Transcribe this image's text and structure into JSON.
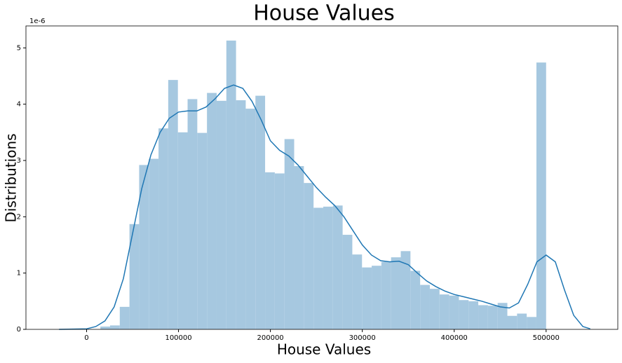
{
  "chart_data": {
    "type": "histogram",
    "title": "House Values",
    "x_label": "House Values",
    "y_label": "Distributions",
    "y_offset_label": "1e-6",
    "bins": [
      15000,
      25543,
      36087,
      46630,
      57174,
      67717,
      78261,
      88804,
      99348,
      109891,
      120435,
      130978,
      141522,
      152065,
      162609,
      173152,
      183696,
      194239,
      204783,
      215326,
      225870,
      236413,
      246957,
      257500,
      268043,
      278587,
      289130,
      299674,
      310217,
      320761,
      331304,
      341848,
      352391,
      362935,
      373478,
      384022,
      394565,
      405109,
      415652,
      426196,
      436739,
      447283,
      457826,
      468370,
      478913,
      489457,
      500000
    ],
    "values": [
      0.05,
      0.07,
      0.4,
      1.87,
      2.92,
      3.03,
      3.57,
      4.43,
      3.5,
      4.09,
      3.49,
      4.2,
      4.06,
      5.13,
      4.07,
      3.92,
      4.15,
      2.79,
      2.77,
      3.38,
      2.9,
      2.6,
      2.16,
      2.18,
      2.2,
      1.68,
      1.33,
      1.1,
      1.13,
      1.2,
      1.28,
      1.39,
      1.04,
      0.79,
      0.72,
      0.62,
      0.6,
      0.52,
      0.5,
      0.43,
      0.42,
      0.47,
      0.24,
      0.28,
      0.22,
      4.74
    ],
    "color": "#a6c8e0",
    "kde": {
      "color": "#1f77b4",
      "x": [
        -30000,
        0,
        10000,
        20000,
        30000,
        40000,
        50000,
        60000,
        70000,
        80000,
        90000,
        100000,
        110000,
        120000,
        130000,
        140000,
        150000,
        160000,
        170000,
        180000,
        190000,
        200000,
        210000,
        220000,
        230000,
        240000,
        250000,
        260000,
        270000,
        280000,
        290000,
        300000,
        310000,
        320000,
        330000,
        340000,
        350000,
        360000,
        370000,
        380000,
        390000,
        400000,
        410000,
        420000,
        430000,
        440000,
        450000,
        460000,
        470000,
        480000,
        490000,
        500000,
        510000,
        520000,
        530000,
        540000,
        548000
      ],
      "y": [
        0,
        0.01,
        0.05,
        0.15,
        0.4,
        0.9,
        1.7,
        2.5,
        3.1,
        3.5,
        3.75,
        3.86,
        3.88,
        3.88,
        3.95,
        4.1,
        4.28,
        4.34,
        4.28,
        4.05,
        3.72,
        3.35,
        3.18,
        3.08,
        2.92,
        2.72,
        2.52,
        2.35,
        2.2,
        2.0,
        1.75,
        1.5,
        1.32,
        1.22,
        1.2,
        1.21,
        1.15,
        1.0,
        0.86,
        0.76,
        0.68,
        0.62,
        0.58,
        0.54,
        0.5,
        0.45,
        0.4,
        0.38,
        0.47,
        0.8,
        1.2,
        1.32,
        1.2,
        0.7,
        0.25,
        0.05,
        0.01
      ]
    },
    "xlim": [
      -66000,
      578000
    ],
    "xticks": [
      0,
      100000,
      200000,
      300000,
      400000,
      500000
    ],
    "ylim": [
      0,
      5.39
    ],
    "yticks": [
      0,
      1,
      2,
      3,
      4,
      5
    ]
  }
}
